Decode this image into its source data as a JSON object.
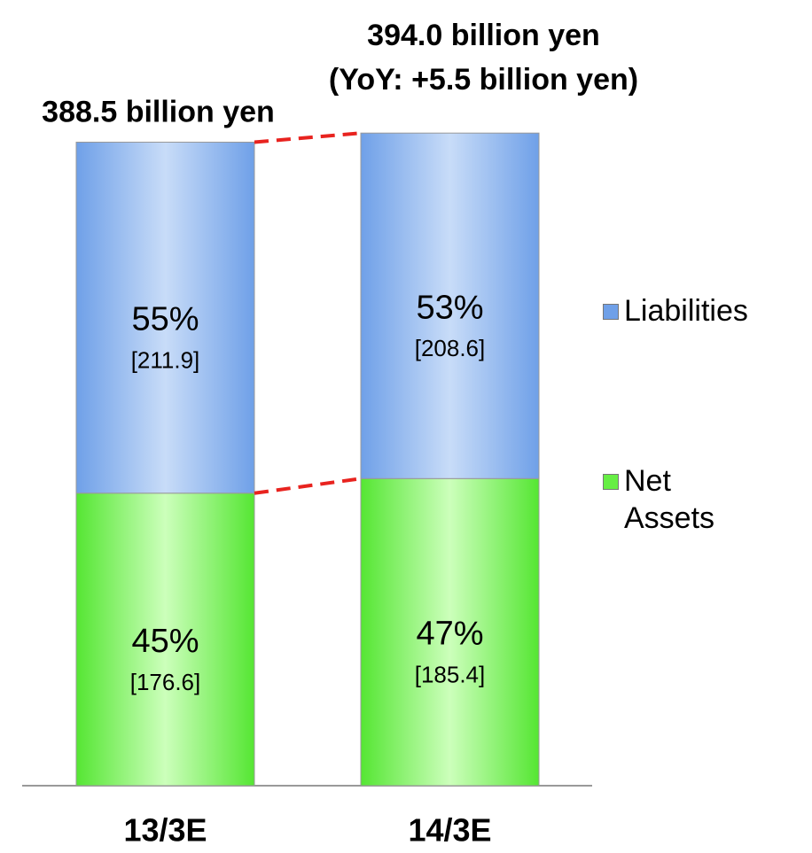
{
  "chart_data": {
    "type": "stacked_bar",
    "categories": [
      "13/3E",
      "14/3E"
    ],
    "series": [
      {
        "name": "Net Assets",
        "color": "#66ee44",
        "values": [
          176.6,
          185.4
        ],
        "value_labels": [
          "[176.6]",
          "[185.4]"
        ],
        "shares": [
          45,
          47
        ],
        "share_labels": [
          "45%",
          "47%"
        ]
      },
      {
        "name": "Liabilities",
        "color": "#6fa0e8",
        "values": [
          211.9,
          208.6
        ],
        "value_labels": [
          "[211.9]",
          "[208.6]"
        ],
        "shares": [
          55,
          53
        ],
        "share_labels": [
          "55%",
          "53%"
        ]
      }
    ],
    "totals": [
      388.5,
      394.0
    ],
    "total_labels": [
      "388.5 billion yen",
      "394.0 billion yen"
    ],
    "annotation": "(YoY: +5.5 billion yen)",
    "legend": "right"
  }
}
